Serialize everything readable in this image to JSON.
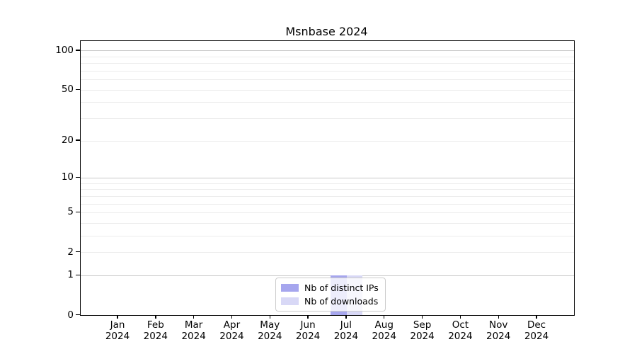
{
  "chart_data": {
    "type": "bar",
    "title": "Msnbase 2024",
    "year_label": "2024",
    "categories": [
      "Jan",
      "Feb",
      "Mar",
      "Apr",
      "May",
      "Jun",
      "Jul",
      "Aug",
      "Sep",
      "Oct",
      "Nov",
      "Dec"
    ],
    "series": [
      {
        "name": "Nb of distinct IPs",
        "color": "#a6a6ee",
        "values": [
          0,
          0,
          0,
          0,
          0,
          0,
          1,
          0,
          0,
          0,
          0,
          0
        ]
      },
      {
        "name": "Nb of downloads",
        "color": "#d8d8f6",
        "values": [
          0,
          0,
          0,
          0,
          0,
          0,
          1,
          0,
          0,
          0,
          0,
          0
        ]
      }
    ],
    "xlabel": "",
    "ylabel": "",
    "yscale": "log1p",
    "ylim": [
      0,
      117
    ],
    "yticks": [
      0,
      1,
      2,
      5,
      10,
      20,
      50,
      100
    ],
    "major_gridlines": [
      1,
      10,
      100
    ],
    "minor_gridlines": [
      2,
      3,
      4,
      5,
      6,
      7,
      8,
      9,
      20,
      30,
      40,
      50,
      60,
      70,
      80,
      90
    ],
    "grid": "horizontal",
    "legend_position": "inside-bottom-center",
    "colors": {
      "axis": "#000000",
      "major_grid": "#c8c8c8",
      "minor_grid": "#ececec",
      "plot_background": "#ffffff"
    }
  }
}
